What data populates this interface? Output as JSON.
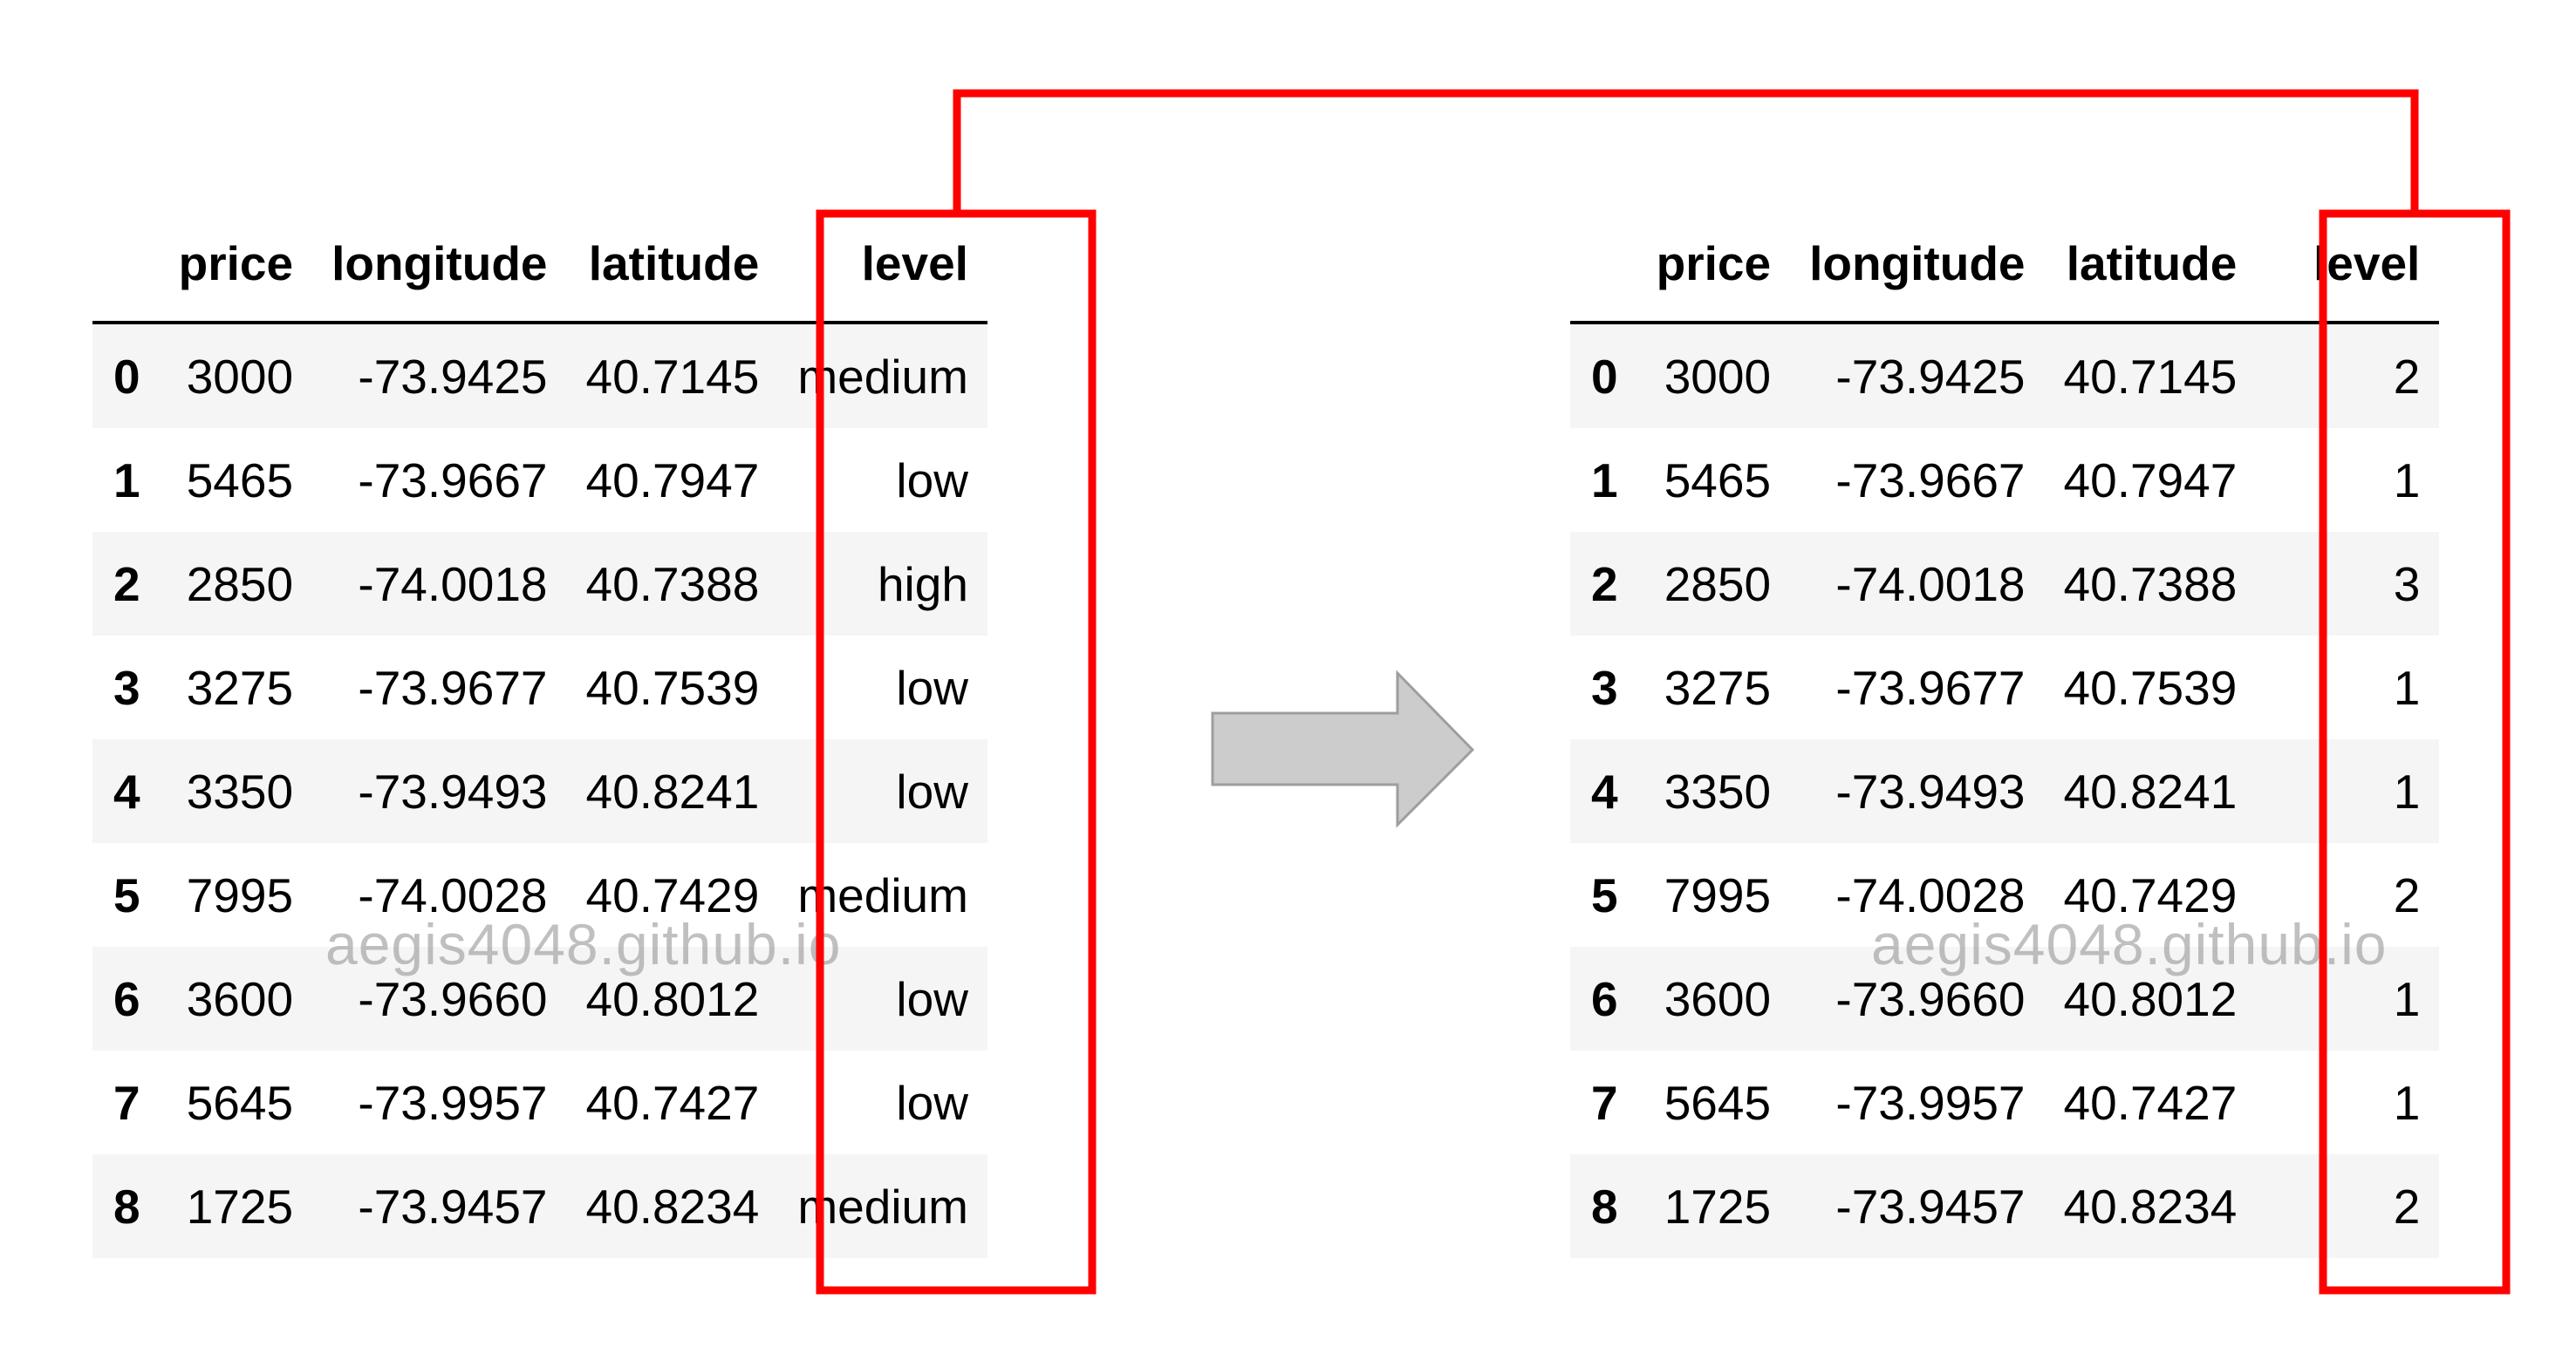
{
  "columns": [
    "",
    "price",
    "longitude",
    "latitude",
    "level"
  ],
  "left_table": {
    "rows": [
      {
        "index": "0",
        "price": "3000",
        "longitude": "-73.9425",
        "latitude": "40.7145",
        "level": "medium"
      },
      {
        "index": "1",
        "price": "5465",
        "longitude": "-73.9667",
        "latitude": "40.7947",
        "level": "low"
      },
      {
        "index": "2",
        "price": "2850",
        "longitude": "-74.0018",
        "latitude": "40.7388",
        "level": "high"
      },
      {
        "index": "3",
        "price": "3275",
        "longitude": "-73.9677",
        "latitude": "40.7539",
        "level": "low"
      },
      {
        "index": "4",
        "price": "3350",
        "longitude": "-73.9493",
        "latitude": "40.8241",
        "level": "low"
      },
      {
        "index": "5",
        "price": "7995",
        "longitude": "-74.0028",
        "latitude": "40.7429",
        "level": "medium"
      },
      {
        "index": "6",
        "price": "3600",
        "longitude": "-73.9660",
        "latitude": "40.8012",
        "level": "low"
      },
      {
        "index": "7",
        "price": "5645",
        "longitude": "-73.9957",
        "latitude": "40.7427",
        "level": "low"
      },
      {
        "index": "8",
        "price": "1725",
        "longitude": "-73.9457",
        "latitude": "40.8234",
        "level": "medium"
      }
    ]
  },
  "right_table": {
    "rows": [
      {
        "index": "0",
        "price": "3000",
        "longitude": "-73.9425",
        "latitude": "40.7145",
        "level": "2"
      },
      {
        "index": "1",
        "price": "5465",
        "longitude": "-73.9667",
        "latitude": "40.7947",
        "level": "1"
      },
      {
        "index": "2",
        "price": "2850",
        "longitude": "-74.0018",
        "latitude": "40.7388",
        "level": "3"
      },
      {
        "index": "3",
        "price": "3275",
        "longitude": "-73.9677",
        "latitude": "40.7539",
        "level": "1"
      },
      {
        "index": "4",
        "price": "3350",
        "longitude": "-73.9493",
        "latitude": "40.8241",
        "level": "1"
      },
      {
        "index": "5",
        "price": "7995",
        "longitude": "-74.0028",
        "latitude": "40.7429",
        "level": "2"
      },
      {
        "index": "6",
        "price": "3600",
        "longitude": "-73.9660",
        "latitude": "40.8012",
        "level": "1"
      },
      {
        "index": "7",
        "price": "5645",
        "longitude": "-73.9957",
        "latitude": "40.7427",
        "level": "1"
      },
      {
        "index": "8",
        "price": "1725",
        "longitude": "-73.9457",
        "latitude": "40.8234",
        "level": "2"
      }
    ]
  },
  "watermark": "aegis4048.github.io",
  "arrow_icon": "right-arrow-icon",
  "colors": {
    "highlight": "#ff0000",
    "arrow_fill": "#cccccc",
    "arrow_stroke": "#9e9e9e",
    "row_stripe": "#f5f5f5"
  }
}
